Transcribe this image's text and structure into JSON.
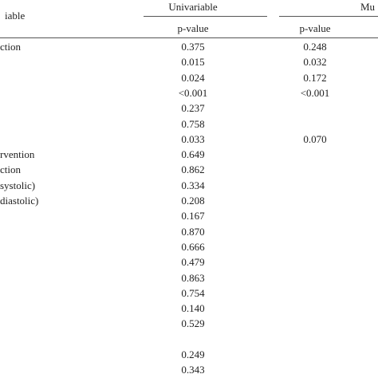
{
  "header": {
    "variable": "iable",
    "univariable": "Univariable",
    "multivariable": "Mu",
    "p_value_uni": "p-value",
    "p_value_multi": "p-value"
  },
  "rows": [
    {
      "label": "ction",
      "univariable": "0.375",
      "multivariable": "0.248"
    },
    {
      "univariable": "0.015",
      "multivariable": "0.032"
    },
    {
      "univariable": "0.024",
      "multivariable": "0.172"
    },
    {
      "univariable": "<0.001",
      "multivariable": "<0.001"
    },
    {
      "univariable": "0.237"
    },
    {
      "univariable": "0.758"
    },
    {
      "univariable": "0.033",
      "multivariable": "0.070"
    },
    {
      "label": "rvention",
      "univariable": "0.649"
    },
    {
      "label": "ction",
      "univariable": "0.862"
    },
    {
      "label": "systolic)",
      "univariable": "0.334"
    },
    {
      "label": "diastolic)",
      "univariable": "0.208"
    },
    {
      "univariable": "0.167"
    },
    {
      "univariable": "0.870"
    },
    {
      "univariable": "0.666"
    },
    {
      "univariable": "0.479"
    },
    {
      "univariable": "0.863"
    },
    {
      "univariable": "0.754"
    },
    {
      "univariable": "0.140"
    },
    {
      "univariable": "0.529"
    },
    {
      "univariable": "0.249"
    },
    {
      "univariable": "0.343"
    }
  ]
}
